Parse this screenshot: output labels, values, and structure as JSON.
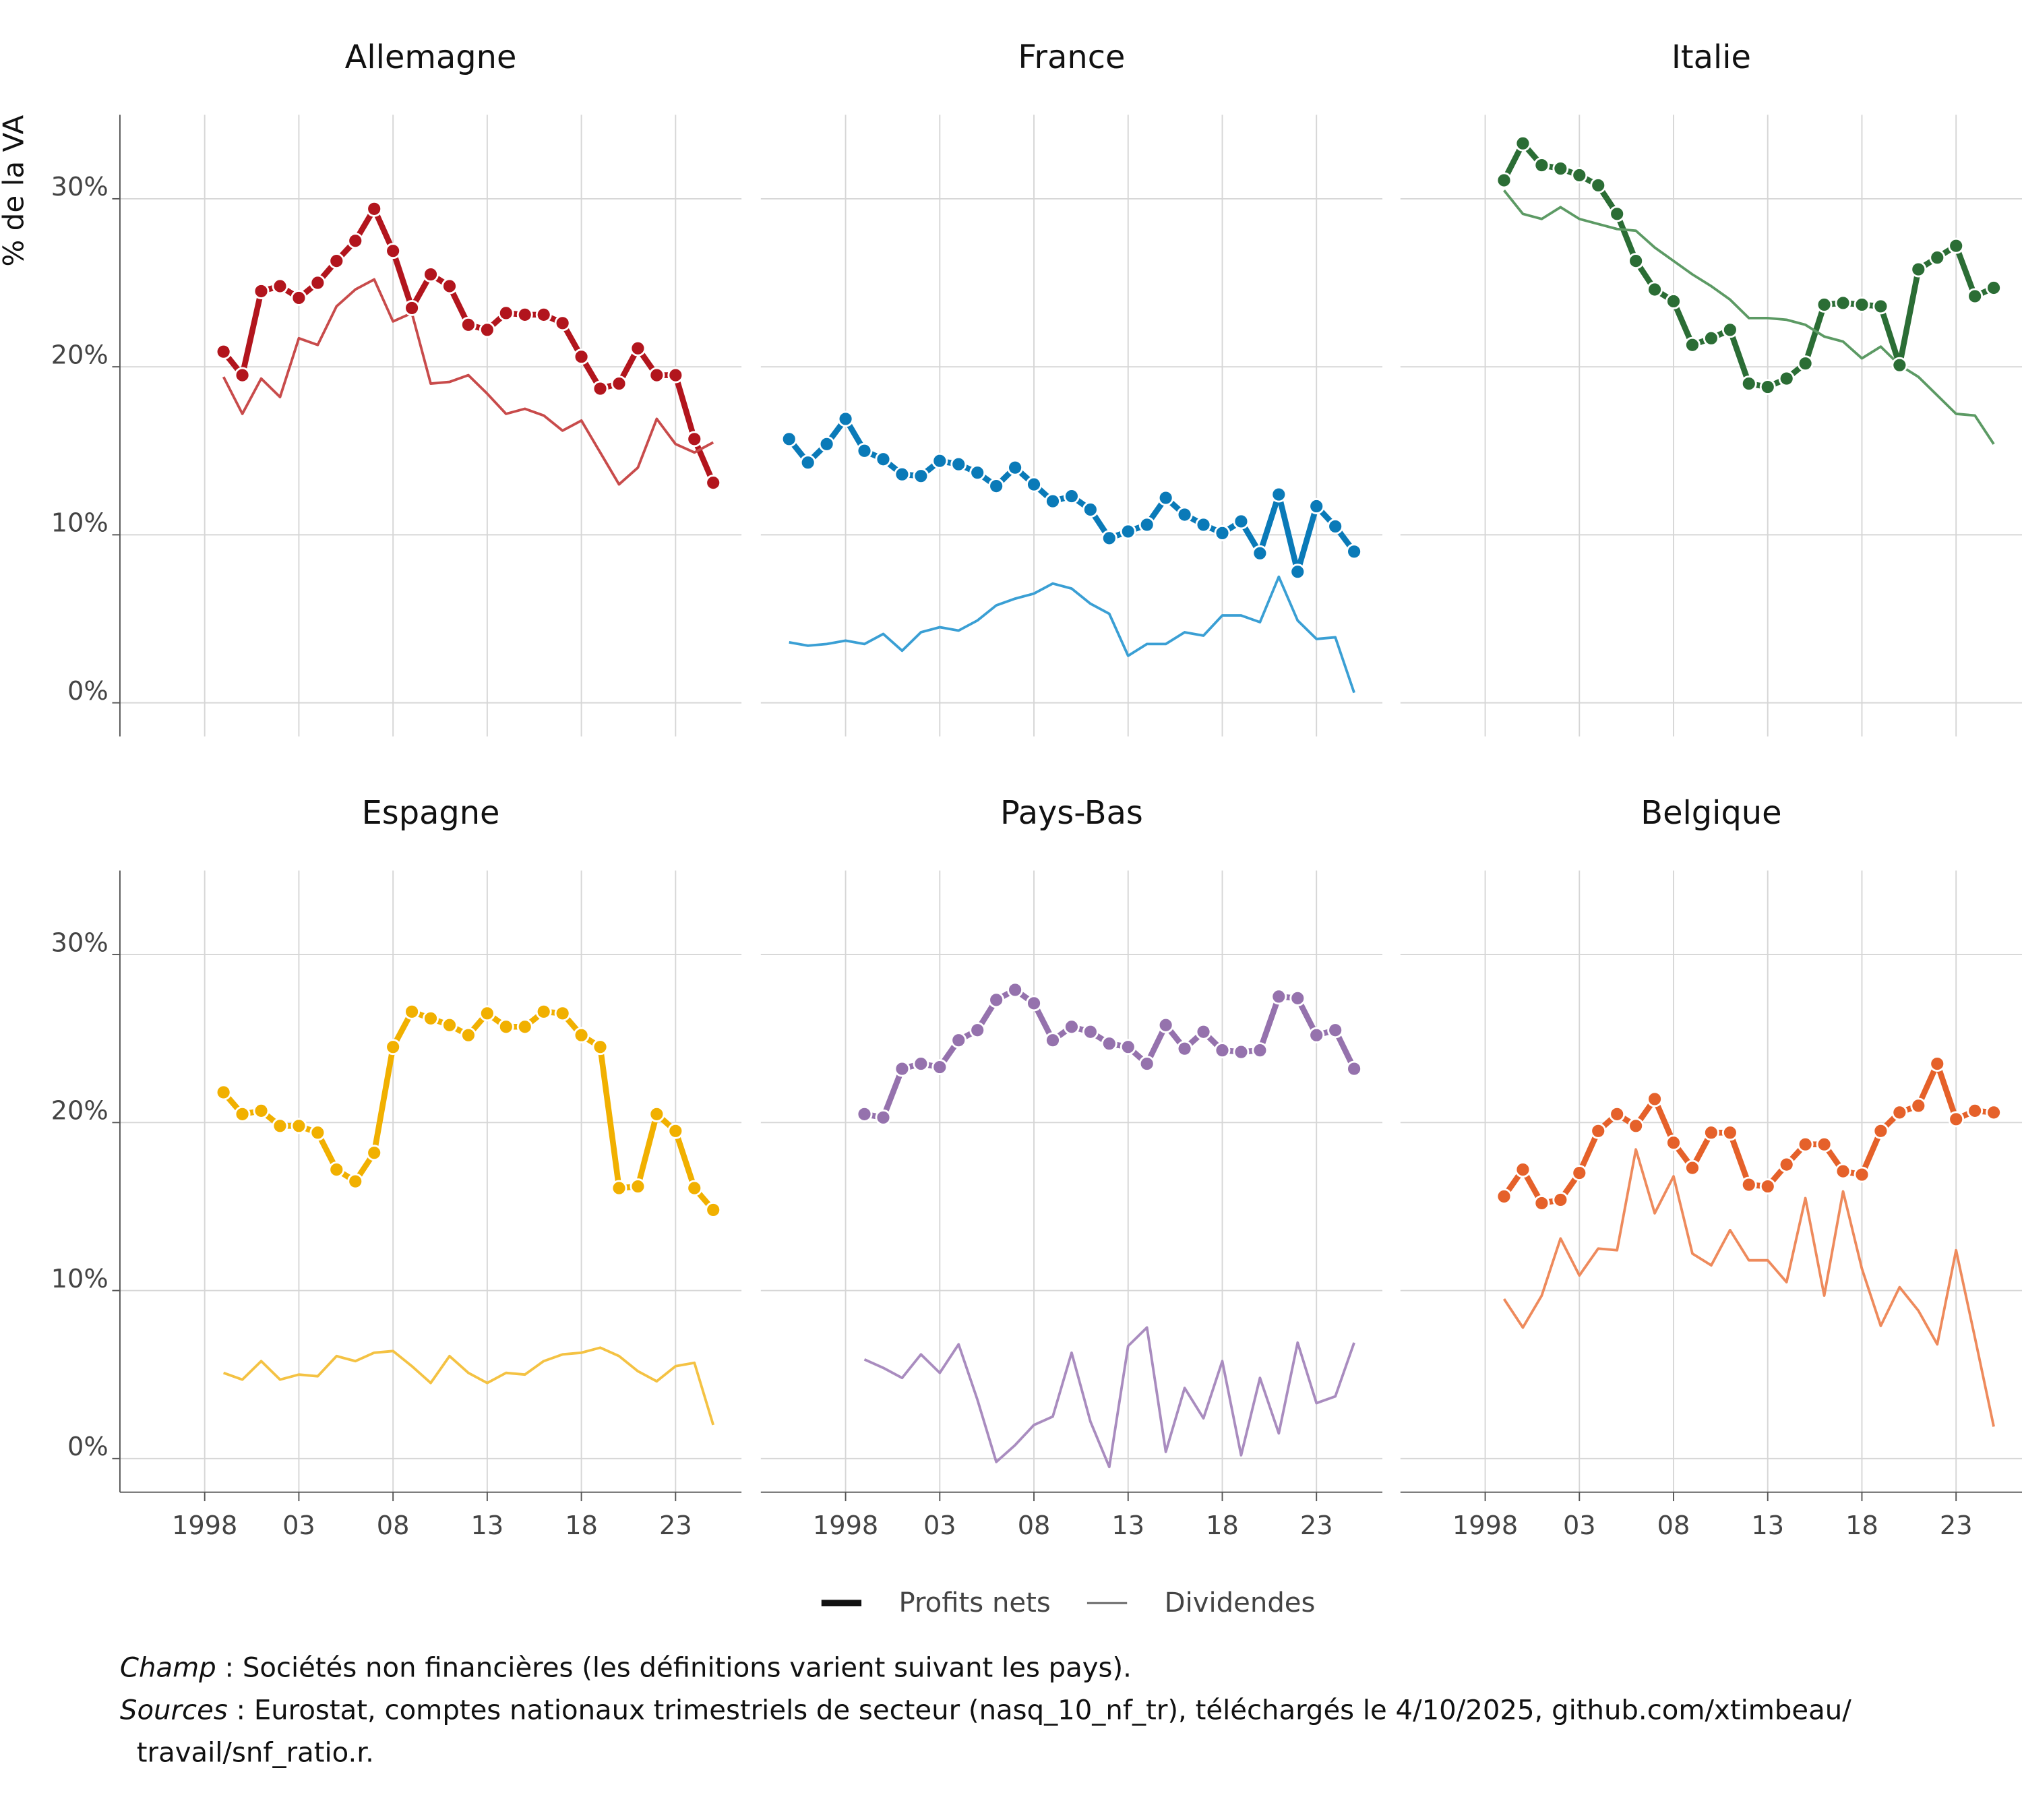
{
  "ylabel": "% de la VA",
  "legend": [
    {
      "name": "Profits nets",
      "color": "#111111"
    },
    {
      "name": "Dividendes",
      "color": "#666666"
    }
  ],
  "notes": [
    {
      "label": "Champ",
      "text": " : Sociétés non financières (les définitions varient suivant les pays)."
    },
    {
      "label": "Sources",
      "text": " : Eurostat, comptes nationaux trimestriels de secteur (nasq_10_nf_tr), téléchargés le 4/10/2025, github.com/xtimbeau/ travail/snf_ratio.r."
    }
  ],
  "chart_data": [
    {
      "type": "line",
      "title": "Allemagne",
      "grid": true,
      "x": [
        1999,
        2000,
        2001,
        2002,
        2003,
        2004,
        2005,
        2006,
        2007,
        2008,
        2009,
        2010,
        2011,
        2012,
        2013,
        2014,
        2015,
        2016,
        2017,
        2018,
        2019,
        2020,
        2021,
        2022,
        2023,
        2024,
        2025
      ],
      "xlim": [
        1993.5,
        2026.5
      ],
      "xticks": [
        1998,
        2003,
        2008,
        2013,
        2018,
        2023
      ],
      "ylim": [
        -2,
        35
      ],
      "yticks": [
        {
          "value": 0,
          "label": "0%"
        },
        {
          "value": 10,
          "label": "10%"
        },
        {
          "value": 20,
          "label": "20%"
        },
        {
          "value": 30,
          "label": "30%"
        }
      ],
      "series": [
        {
          "color": "#b2151d",
          "values": [
            20.9,
            19.5,
            24.5,
            24.8,
            24.1,
            25.0,
            26.3,
            27.5,
            29.4,
            26.9,
            23.5,
            25.5,
            24.8,
            22.5,
            22.2,
            23.2,
            23.1,
            23.1,
            22.6,
            20.6,
            18.7,
            19.0,
            21.1,
            19.5,
            19.5,
            15.7,
            13.1
          ]
        },
        {
          "color": "#c84b4b",
          "values": [
            19.4,
            17.2,
            19.3,
            18.2,
            21.7,
            21.3,
            23.6,
            24.6,
            25.2,
            22.7,
            23.2,
            19.0,
            19.1,
            19.5,
            18.4,
            17.2,
            17.5,
            17.1,
            16.2,
            16.8,
            14.9,
            13.0,
            14.0,
            16.9,
            15.4,
            14.9,
            15.5
          ]
        }
      ]
    },
    {
      "type": "line",
      "title": "France",
      "grid": true,
      "x": [
        1995,
        1996,
        1997,
        1998,
        1999,
        2000,
        2001,
        2002,
        2003,
        2004,
        2005,
        2006,
        2007,
        2008,
        2009,
        2010,
        2011,
        2012,
        2013,
        2014,
        2015,
        2016,
        2017,
        2018,
        2019,
        2020,
        2021,
        2022,
        2023,
        2024,
        2025
      ],
      "xlim": [
        1993.5,
        2026.5
      ],
      "xticks": [
        1998,
        2003,
        2008,
        2013,
        2018,
        2023
      ],
      "ylim": [
        -2,
        35
      ],
      "yticks": [
        0,
        10,
        20,
        30
      ],
      "series": [
        {
          "color": "#0a7ab8",
          "values": [
            15.7,
            14.3,
            15.4,
            16.9,
            15.0,
            14.5,
            13.6,
            13.5,
            14.4,
            14.2,
            13.7,
            12.9,
            14.0,
            13.0,
            12.0,
            12.3,
            11.5,
            9.8,
            10.2,
            10.6,
            12.2,
            11.2,
            10.6,
            10.1,
            10.8,
            8.9,
            12.4,
            7.8,
            11.7,
            10.5,
            9.0
          ]
        },
        {
          "color": "#3a9fd4",
          "values": [
            3.6,
            3.4,
            3.5,
            3.7,
            3.5,
            4.1,
            3.1,
            4.2,
            4.5,
            4.3,
            4.9,
            5.8,
            6.2,
            6.5,
            7.1,
            6.8,
            5.9,
            5.3,
            2.8,
            3.5,
            3.5,
            4.2,
            4.0,
            5.2,
            5.2,
            4.8,
            7.5,
            4.9,
            3.8,
            3.9,
            0.6
          ]
        }
      ]
    },
    {
      "type": "line",
      "title": "Italie",
      "grid": true,
      "x": [
        1999,
        2000,
        2001,
        2002,
        2003,
        2004,
        2005,
        2006,
        2007,
        2008,
        2009,
        2010,
        2011,
        2012,
        2013,
        2014,
        2015,
        2016,
        2017,
        2018,
        2019,
        2020,
        2021,
        2022,
        2023,
        2024,
        2025
      ],
      "xlim": [
        1993.5,
        2026.5
      ],
      "xticks": [
        1998,
        2003,
        2008,
        2013,
        2018,
        2023
      ],
      "ylim": [
        -2,
        35
      ],
      "yticks": [
        0,
        10,
        20,
        30
      ],
      "series": [
        {
          "color": "#2b6d35",
          "values": [
            31.1,
            33.3,
            32.0,
            31.8,
            31.4,
            30.8,
            29.1,
            26.3,
            24.6,
            23.9,
            21.3,
            21.7,
            22.2,
            19.0,
            18.8,
            19.3,
            20.2,
            23.7,
            23.8,
            23.7,
            23.6,
            20.1,
            25.8,
            26.5,
            27.2,
            24.2,
            24.7
          ]
        },
        {
          "color": "#5c9a64",
          "values": [
            30.5,
            29.1,
            28.8,
            29.5,
            28.8,
            28.5,
            28.2,
            28.1,
            27.1,
            26.3,
            25.5,
            24.8,
            24.0,
            22.9,
            22.9,
            22.8,
            22.5,
            21.8,
            21.5,
            20.5,
            21.2,
            20.1,
            19.4,
            18.3,
            17.2,
            17.1,
            15.4
          ]
        }
      ]
    },
    {
      "type": "line",
      "title": "Espagne",
      "grid": true,
      "x": [
        1999,
        2000,
        2001,
        2002,
        2003,
        2004,
        2005,
        2006,
        2007,
        2008,
        2009,
        2010,
        2011,
        2012,
        2013,
        2014,
        2015,
        2016,
        2017,
        2018,
        2019,
        2020,
        2021,
        2022,
        2023,
        2024,
        2025
      ],
      "xlim": [
        1993.5,
        2026.5
      ],
      "xticks": [
        1998,
        {
          "value": 2003,
          "label": "03"
        },
        {
          "value": 2008,
          "label": "08"
        },
        {
          "value": 2013,
          "label": "13"
        },
        {
          "value": 2018,
          "label": "18"
        },
        {
          "value": 2023,
          "label": "23"
        }
      ],
      "ylim": [
        -2,
        35
      ],
      "yticks": [
        {
          "value": 0,
          "label": "0%"
        },
        {
          "value": 10,
          "label": "10%"
        },
        {
          "value": 20,
          "label": "20%"
        },
        {
          "value": 30,
          "label": "30%"
        }
      ],
      "series": [
        {
          "color": "#f1b000",
          "values": [
            21.8,
            20.5,
            20.7,
            19.8,
            19.8,
            19.4,
            17.2,
            16.5,
            18.2,
            24.5,
            26.6,
            26.2,
            25.8,
            25.2,
            26.5,
            25.7,
            25.7,
            26.6,
            26.5,
            25.2,
            24.5,
            16.1,
            16.2,
            20.5,
            19.5,
            16.1,
            14.8
          ]
        },
        {
          "color": "#f4c243",
          "values": [
            5.1,
            4.7,
            5.8,
            4.7,
            5.0,
            4.9,
            6.1,
            5.8,
            6.3,
            6.4,
            5.5,
            4.5,
            6.1,
            5.1,
            4.5,
            5.1,
            5.0,
            5.8,
            6.2,
            6.3,
            6.6,
            6.1,
            5.2,
            4.6,
            5.5,
            5.7,
            2.0
          ]
        }
      ]
    },
    {
      "type": "line",
      "title": "Pays-Bas",
      "grid": true,
      "x": [
        1999,
        2000,
        2001,
        2002,
        2003,
        2004,
        2005,
        2006,
        2007,
        2008,
        2009,
        2010,
        2011,
        2012,
        2013,
        2014,
        2015,
        2016,
        2017,
        2018,
        2019,
        2020,
        2021,
        2022,
        2023,
        2024,
        2025
      ],
      "xlim": [
        1993.5,
        2026.5
      ],
      "xticks": [
        1998,
        {
          "value": 2003,
          "label": "03"
        },
        {
          "value": 2008,
          "label": "08"
        },
        {
          "value": 2013,
          "label": "13"
        },
        {
          "value": 2018,
          "label": "18"
        },
        {
          "value": 2023,
          "label": "23"
        }
      ],
      "ylim": [
        -2,
        35
      ],
      "yticks": [
        0,
        10,
        20,
        30
      ],
      "series": [
        {
          "color": "#9572ad",
          "values": [
            20.5,
            20.3,
            23.2,
            23.5,
            23.3,
            24.9,
            25.5,
            27.3,
            27.9,
            27.1,
            24.9,
            25.7,
            25.4,
            24.7,
            24.5,
            23.5,
            25.8,
            24.4,
            25.4,
            24.3,
            24.2,
            24.3,
            27.5,
            27.4,
            25.2,
            25.5,
            23.2
          ]
        },
        {
          "color": "#a98cbf",
          "values": [
            5.9,
            5.4,
            4.8,
            6.2,
            5.1,
            6.8,
            3.5,
            -0.2,
            0.8,
            2.0,
            2.5,
            6.3,
            2.2,
            -0.5,
            6.7,
            7.8,
            0.4,
            4.2,
            2.4,
            5.8,
            0.2,
            4.8,
            1.5,
            6.9,
            3.3,
            3.7,
            6.9
          ]
        }
      ]
    },
    {
      "type": "line",
      "title": "Belgique",
      "grid": true,
      "x": [
        1999,
        2000,
        2001,
        2002,
        2003,
        2004,
        2005,
        2006,
        2007,
        2008,
        2009,
        2010,
        2011,
        2012,
        2013,
        2014,
        2015,
        2016,
        2017,
        2018,
        2019,
        2020,
        2021,
        2022,
        2023,
        2024,
        2025
      ],
      "xlim": [
        1993.5,
        2026.5
      ],
      "xticks": [
        1998,
        {
          "value": 2003,
          "label": "03"
        },
        {
          "value": 2008,
          "label": "08"
        },
        {
          "value": 2013,
          "label": "13"
        },
        {
          "value": 2018,
          "label": "18"
        },
        {
          "value": 2023,
          "label": "23"
        }
      ],
      "ylim": [
        -2,
        35
      ],
      "yticks": [
        0,
        10,
        20,
        30
      ],
      "series": [
        {
          "color": "#e5612a",
          "values": [
            15.6,
            17.2,
            15.2,
            15.4,
            17.0,
            19.5,
            20.5,
            19.8,
            21.4,
            18.8,
            17.3,
            19.4,
            19.4,
            16.3,
            16.2,
            17.5,
            18.7,
            18.7,
            17.1,
            16.9,
            19.5,
            20.6,
            21.0,
            23.5,
            20.2,
            20.7,
            20.6
          ]
        },
        {
          "color": "#ee8a5c",
          "values": [
            9.5,
            7.8,
            9.7,
            13.1,
            10.9,
            12.5,
            12.4,
            18.4,
            14.6,
            16.8,
            12.2,
            11.5,
            13.6,
            11.8,
            11.8,
            10.5,
            15.5,
            9.7,
            15.9,
            11.3,
            7.9,
            10.2,
            8.8,
            6.8,
            12.4,
            7.2,
            1.9
          ]
        }
      ]
    }
  ]
}
